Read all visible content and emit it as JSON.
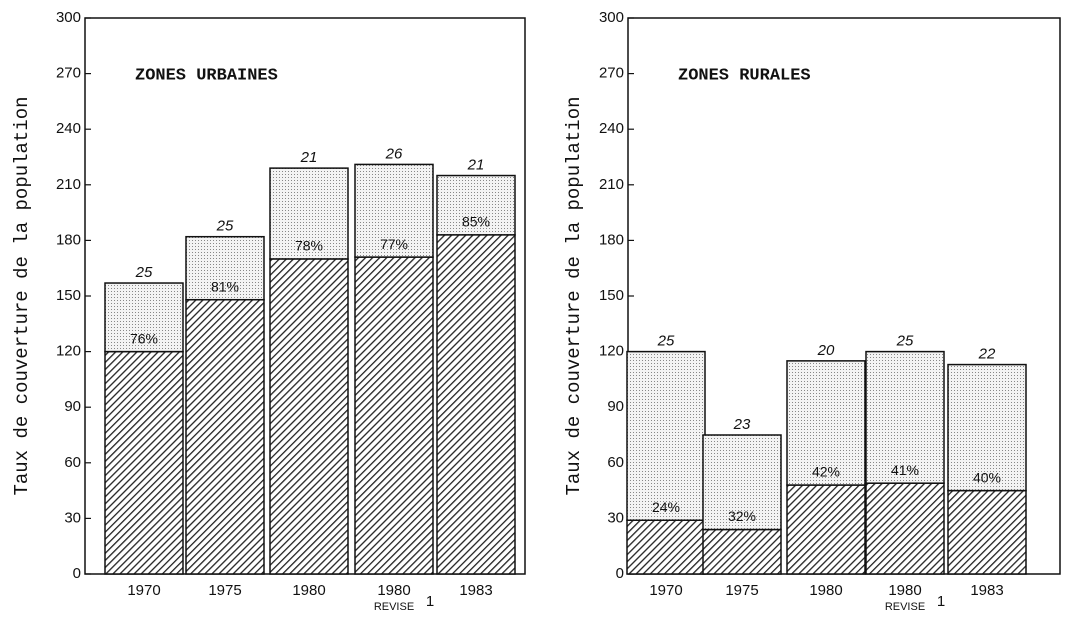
{
  "chart_data": [
    {
      "type": "stacked_bar",
      "title": "ZONES URBAINES",
      "y_label": "Taux de couverture de la population",
      "categories": [
        "1970",
        "1975",
        "1980",
        "1980",
        "1983"
      ],
      "category_sublabels": [
        null,
        null,
        null,
        "REVISE",
        null
      ],
      "footnote_marks": [
        null,
        null,
        null,
        "1",
        null
      ],
      "series": [
        {
          "color": "#333333",
          "pattern": "hatch",
          "values": [
            120,
            148,
            170,
            171,
            183
          ]
        },
        {
          "color": "#cccccc",
          "pattern": "dots",
          "values": [
            37,
            34,
            49,
            50,
            32
          ]
        }
      ],
      "percent_labels": [
        "76%",
        "81%",
        "78%",
        "77%",
        "85%"
      ],
      "top_labels": [
        25,
        25,
        21,
        26,
        21
      ],
      "ylim": [
        0,
        300
      ],
      "yticks": [
        0,
        30,
        60,
        90,
        120,
        150,
        180,
        210,
        240,
        270,
        300
      ]
    },
    {
      "type": "stacked_bar",
      "title": "ZONES RURALES",
      "y_label": "Taux de couverture de la population",
      "categories": [
        "1970",
        "1975",
        "1980",
        "1980",
        "1983"
      ],
      "category_sublabels": [
        null,
        null,
        null,
        "REVISE",
        null
      ],
      "footnote_marks": [
        null,
        null,
        null,
        "1",
        null
      ],
      "series": [
        {
          "color": "#333333",
          "pattern": "hatch",
          "values": [
            29,
            24,
            48,
            49,
            45
          ]
        },
        {
          "color": "#cccccc",
          "pattern": "dots",
          "values": [
            91,
            51,
            67,
            71,
            68
          ]
        }
      ],
      "percent_labels": [
        "24%",
        "32%",
        "42%",
        "41%",
        "40%"
      ],
      "top_labels": [
        25,
        23,
        20,
        25,
        22
      ],
      "ylim": [
        0,
        300
      ],
      "yticks": [
        0,
        30,
        60,
        90,
        120,
        150,
        180,
        210,
        240,
        270,
        300
      ]
    }
  ]
}
